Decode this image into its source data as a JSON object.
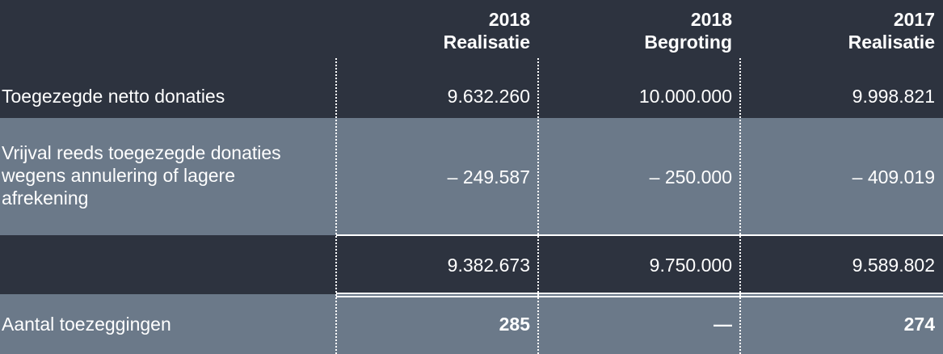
{
  "headers": [
    {
      "year": "2018",
      "label": "Realisatie"
    },
    {
      "year": "2018",
      "label": "Begroting"
    },
    {
      "year": "2017",
      "label": "Realisatie"
    }
  ],
  "rows": [
    {
      "label": "Toegezegde netto donaties",
      "values": [
        "9.632.260",
        "10.000.000",
        "9.998.821"
      ]
    },
    {
      "label": "Vrijval reeds toegezegde donaties wegens annulering of lagere afrekening",
      "values": [
        "– 249.587",
        "– 250.000",
        "– 409.019"
      ]
    },
    {
      "label": "",
      "values": [
        "9.382.673",
        "9.750.000",
        "9.589.802"
      ]
    },
    {
      "label": "Aantal toezeggingen",
      "values": [
        "285",
        "—",
        "274"
      ]
    }
  ],
  "colors": {
    "dark": "#2d333f",
    "slate": "#6b7989",
    "text": "#ffffff"
  }
}
